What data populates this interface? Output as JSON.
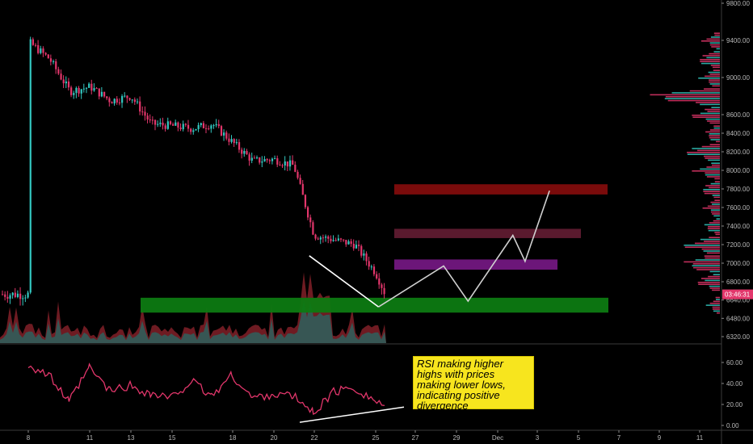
{
  "chart_data": [
    {
      "type": "candlestick",
      "title": "",
      "y_axis_ticks": [
        6320,
        6480,
        6640,
        6800,
        7000,
        7200,
        7400,
        7600,
        7800,
        8000,
        8200,
        8400,
        8600,
        9000,
        9400,
        9800
      ],
      "y_tick_labels": [
        "6320.00",
        "6480.00",
        "6640.00",
        "6800.00",
        "7000.00",
        "7200.00",
        "7400.00",
        "7600.00",
        "7800.00",
        "8000.00",
        "8200.00",
        "8400.00",
        "8600.00",
        "9000.00",
        "9400.00",
        "9800.00"
      ],
      "ylim": [
        6280,
        9900
      ],
      "x_tick_labels": [
        "8",
        "11",
        "13",
        "15",
        "18",
        "20",
        "22",
        "25",
        "27",
        "29",
        "Dec",
        "3",
        "5",
        "7",
        "9",
        "11"
      ],
      "current_price_label": "03:46:31",
      "close_path": [
        {
          "d": "8",
          "v": 9380
        },
        {
          "d": "9",
          "v": 9200
        },
        {
          "d": "10",
          "v": 8850
        },
        {
          "d": "11",
          "v": 8900
        },
        {
          "d": "12",
          "v": 8750
        },
        {
          "d": "13",
          "v": 8800
        },
        {
          "d": "14",
          "v": 8500
        },
        {
          "d": "15",
          "v": 8480
        },
        {
          "d": "16",
          "v": 8450
        },
        {
          "d": "17",
          "v": 8500
        },
        {
          "d": "18",
          "v": 8300
        },
        {
          "d": "19",
          "v": 8100
        },
        {
          "d": "20",
          "v": 8120
        },
        {
          "d": "21",
          "v": 8050
        },
        {
          "d": "22",
          "v": 7300
        },
        {
          "d": "23",
          "v": 7250
        },
        {
          "d": "24",
          "v": 7200
        },
        {
          "d": "25",
          "v": 6900
        },
        {
          "d": "25.5",
          "v": 6690
        }
      ],
      "resistance_zones": [
        {
          "low": 7740,
          "high": 7850,
          "color": "#7a0b0b"
        },
        {
          "low": 7270,
          "high": 7370,
          "color": "#5a1a2e"
        },
        {
          "low": 6930,
          "high": 7040,
          "color": "#6c1679"
        }
      ],
      "support_zone": {
        "low": 6530,
        "high": 6660,
        "color": "#0d7a12"
      },
      "projection_path": [
        {
          "d": "25.2",
          "v": 6580
        },
        {
          "d": "28.4",
          "v": 6970
        },
        {
          "d": "29.6",
          "v": 6630
        },
        {
          "d": "1.8",
          "v": 7300
        },
        {
          "d": "2.4",
          "v": 7020
        },
        {
          "d": "3.6",
          "v": 7780
        }
      ],
      "downtrend_line": [
        {
          "d": "21.8",
          "v": 7080
        },
        {
          "d": "25.2",
          "v": 6580
        }
      ],
      "volume_profile": [
        {
          "v": 9400,
          "w": 0.2
        },
        {
          "v": 9200,
          "w": 0.3
        },
        {
          "v": 9000,
          "w": 0.25
        },
        {
          "v": 8800,
          "w": 0.9
        },
        {
          "v": 8600,
          "w": 0.35
        },
        {
          "v": 8400,
          "w": 0.2
        },
        {
          "v": 8200,
          "w": 0.45
        },
        {
          "v": 8000,
          "w": 0.3
        },
        {
          "v": 7800,
          "w": 0.25
        },
        {
          "v": 7600,
          "w": 0.2
        },
        {
          "v": 7400,
          "w": 0.2
        },
        {
          "v": 7200,
          "w": 0.45
        },
        {
          "v": 7000,
          "w": 0.5
        },
        {
          "v": 6800,
          "w": 0.3
        },
        {
          "v": 6600,
          "w": 0.15
        }
      ]
    },
    {
      "type": "line",
      "series": [
        {
          "values": [
            {
              "d": "8",
              "v": 58
            },
            {
              "d": "9",
              "v": 48
            },
            {
              "d": "10",
              "v": 22
            },
            {
              "d": "11",
              "v": 55
            },
            {
              "d": "12",
              "v": 33
            },
            {
              "d": "13",
              "v": 38
            },
            {
              "d": "14",
              "v": 30
            },
            {
              "d": "15",
              "v": 26
            },
            {
              "d": "16",
              "v": 42
            },
            {
              "d": "17",
              "v": 28
            },
            {
              "d": "18",
              "v": 48
            },
            {
              "d": "19",
              "v": 26
            },
            {
              "d": "20",
              "v": 30
            },
            {
              "d": "21",
              "v": 28
            },
            {
              "d": "22",
              "v": 12
            },
            {
              "d": "23",
              "v": 32
            },
            {
              "d": "24",
              "v": 36
            },
            {
              "d": "25",
              "v": 24
            },
            {
              "d": "25.5",
              "v": 19
            }
          ]
        }
      ],
      "y_axis_ticks": [
        0,
        20,
        40,
        60
      ],
      "y_tick_labels": [
        "0.00",
        "20.00",
        "40.00",
        "60.00"
      ],
      "ylim": [
        0,
        70
      ],
      "trendline": [
        {
          "d": "20.6",
          "v": 3
        },
        {
          "d": "26.3",
          "v": 19
        }
      ]
    }
  ],
  "annotation": "RSI making higher highs with prices making lower lows, indicating positive divergence",
  "colors": {
    "background": "#000000",
    "bear_candle": "#e2366b",
    "bull_candle": "#33c7c0",
    "projection": "#d0d0d0",
    "rsi_line": "#e2366b",
    "annotation_bg": "#f7e51e"
  }
}
